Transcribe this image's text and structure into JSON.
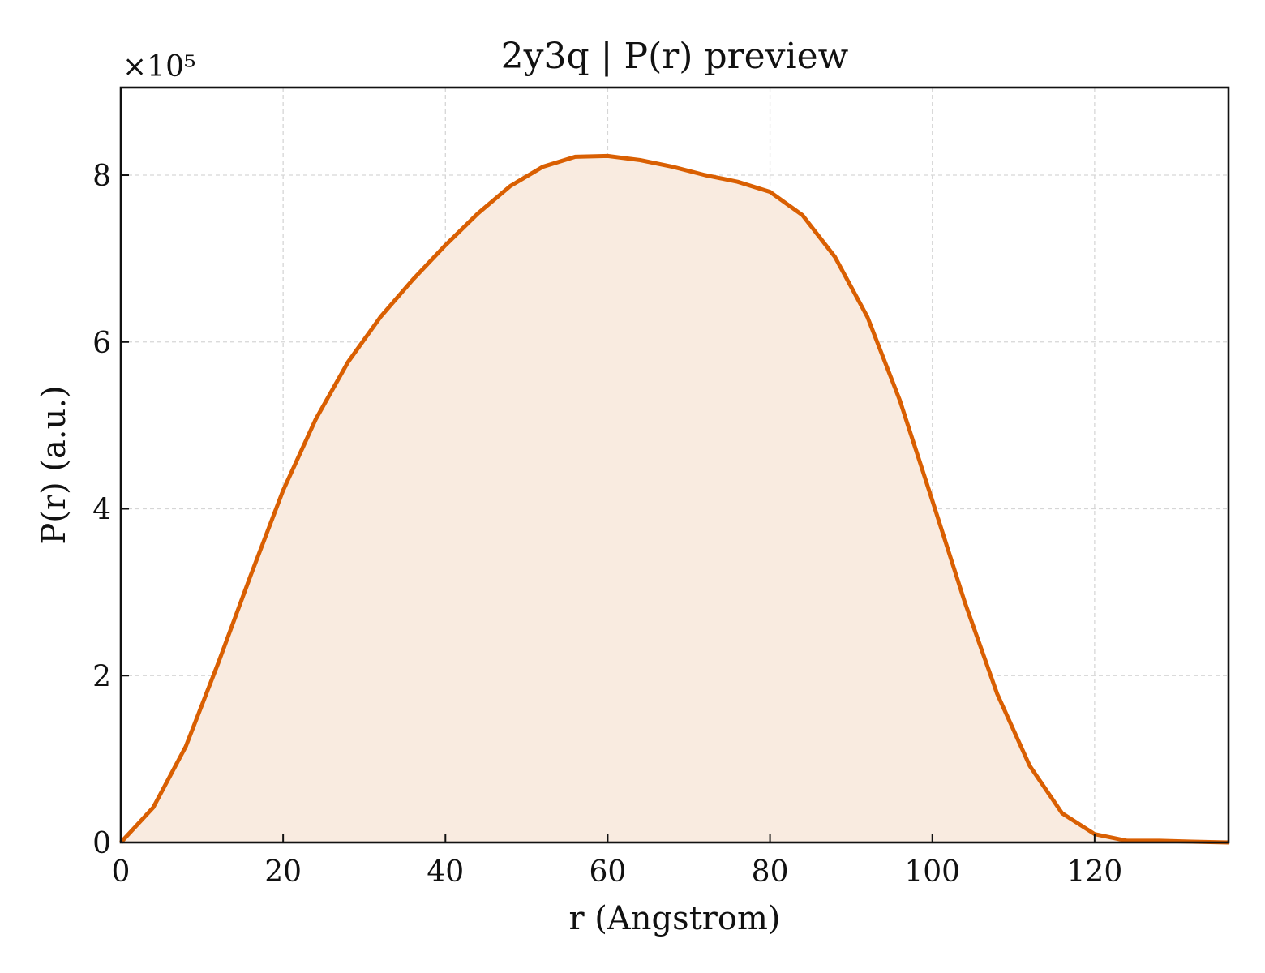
{
  "chart_data": {
    "type": "area",
    "title": "2y3q | P(r) preview",
    "xlabel": "r (Angstrom)",
    "ylabel": "P(r) (a.u.)",
    "y_multiplier_label": "×10⁵",
    "xlim": [
      0,
      136.5
    ],
    "ylim": [
      0,
      9.05
    ],
    "x_ticks": [
      0,
      20,
      40,
      60,
      80,
      100,
      120
    ],
    "y_ticks": [
      0,
      2,
      4,
      6,
      8
    ],
    "grid": true,
    "legend": "none",
    "series": [
      {
        "color": "#d95f02",
        "fill_color": "#f9ebe0",
        "x": [
          0,
          4,
          8,
          12,
          16,
          20,
          24,
          28,
          32,
          36,
          40,
          44,
          48,
          52,
          56,
          60,
          64,
          68,
          72,
          76,
          80,
          84,
          88,
          92,
          96,
          100,
          104,
          108,
          112,
          116,
          120,
          124,
          128,
          132,
          136.5
        ],
        "y": [
          0.0,
          0.42,
          1.15,
          2.15,
          3.2,
          4.22,
          5.07,
          5.76,
          6.3,
          6.75,
          7.16,
          7.54,
          7.87,
          8.1,
          8.22,
          8.23,
          8.18,
          8.1,
          8.0,
          7.92,
          7.8,
          7.52,
          7.02,
          6.3,
          5.3,
          4.1,
          2.88,
          1.78,
          0.92,
          0.35,
          0.1,
          0.02,
          0.02,
          0.01,
          0.0
        ]
      }
    ]
  }
}
